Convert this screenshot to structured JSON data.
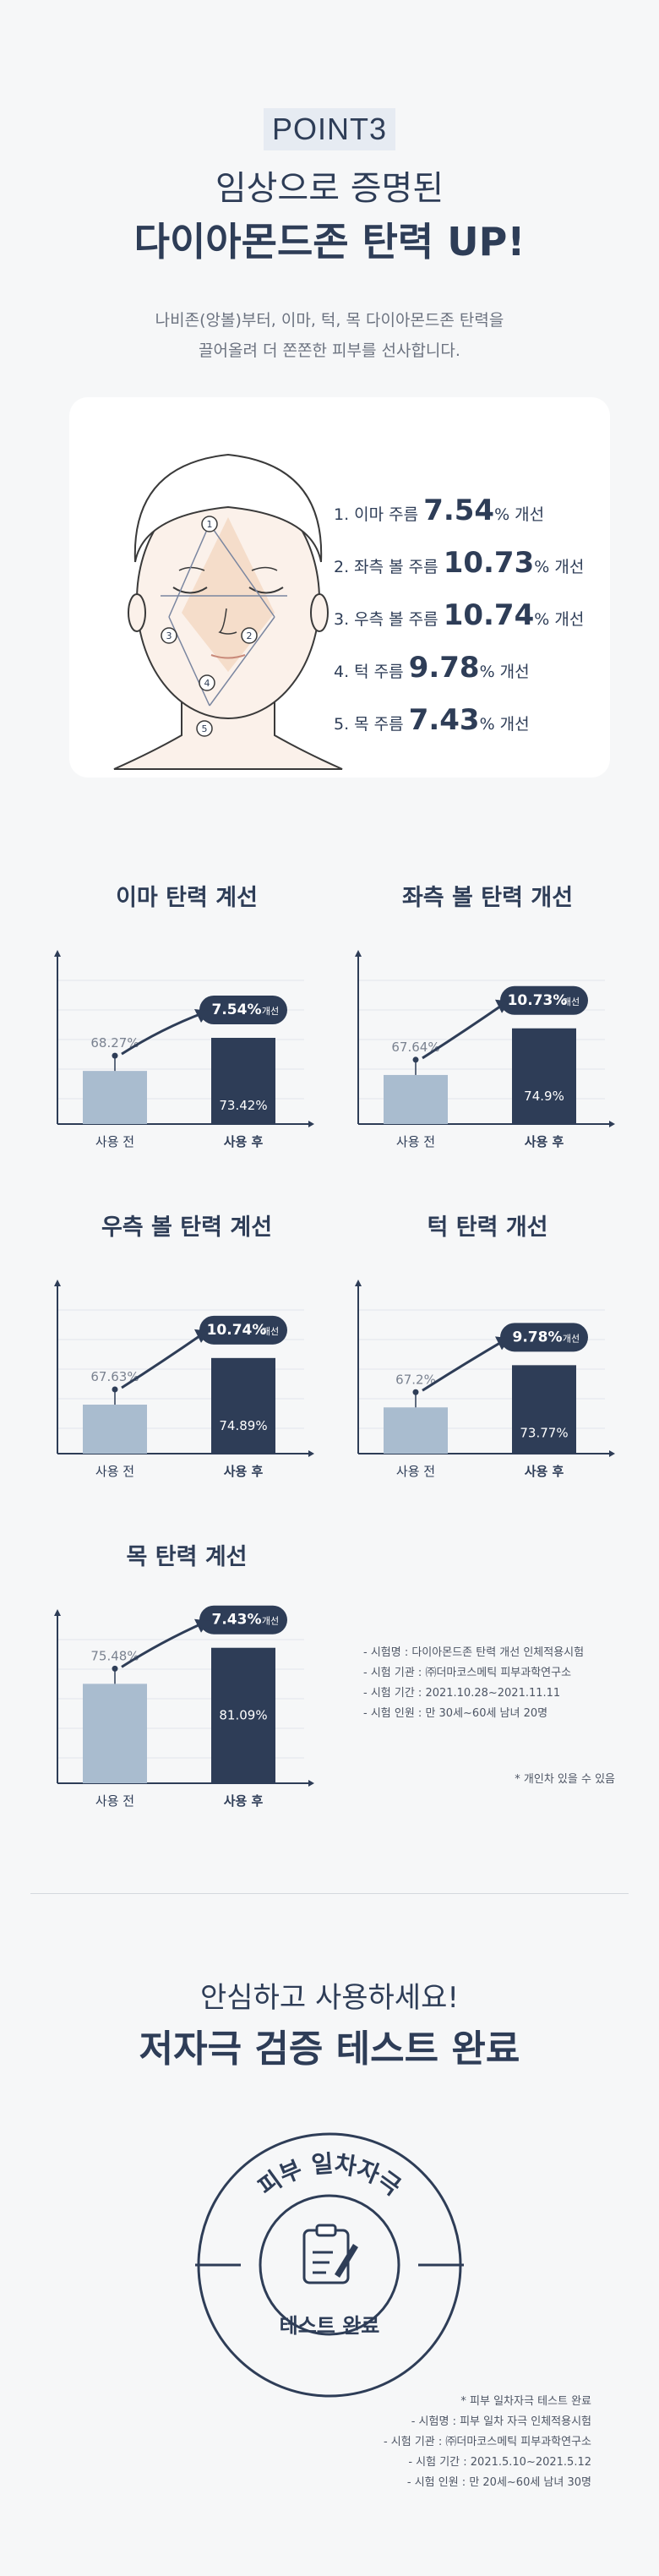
{
  "header": {
    "badge": "POINT3",
    "title_line1": "임상으로 증명된",
    "title_line2": "다이아몬드존 탄력 UP!",
    "desc_line1": "나비존(앙볼)부터, 이마, 턱, 목 다이아몬드존 탄력을",
    "desc_line2": "끌어올려 더 쫀쫀한 피부를 선사합니다."
  },
  "face": {
    "markers": [
      "1",
      "2",
      "3",
      "4",
      "5"
    ]
  },
  "stats": [
    {
      "label": "1. 이마 주름",
      "value": "7.54",
      "unit": "% 개선"
    },
    {
      "label": "2. 좌측 볼 주름",
      "value": "10.73",
      "unit": "% 개선"
    },
    {
      "label": "3. 우측 볼 주름",
      "value": "10.74",
      "unit": "% 개선"
    },
    {
      "label": "4. 턱 주름",
      "value": "9.78",
      "unit": "% 개선"
    },
    {
      "label": "5. 목 주름",
      "value": "7.43",
      "unit": "% 개선"
    }
  ],
  "chart_data": [
    {
      "type": "bar",
      "title": "이마 탄력 계선",
      "categories": [
        "사용 전",
        "사용 후"
      ],
      "values": [
        68.27,
        73.42
      ],
      "value_labels": [
        "68.27%",
        "73.42%"
      ],
      "badge": "7.54%",
      "badge_suffix": "개선"
    },
    {
      "type": "bar",
      "title": "좌측 볼 탄력 개선",
      "categories": [
        "사용 전",
        "사용 후"
      ],
      "values": [
        67.64,
        74.9
      ],
      "value_labels": [
        "67.64%",
        "74.9%"
      ],
      "badge": "10.73%",
      "badge_suffix": "개선"
    },
    {
      "type": "bar",
      "title": "우측 볼 탄력 계선",
      "categories": [
        "사용 전",
        "사용 후"
      ],
      "values": [
        67.63,
        74.89
      ],
      "value_labels": [
        "67.63%",
        "74.89%"
      ],
      "badge": "10.74%",
      "badge_suffix": "개선"
    },
    {
      "type": "bar",
      "title": "턱 탄력 개선",
      "categories": [
        "사용 전",
        "사용 후"
      ],
      "values": [
        67.2,
        73.77
      ],
      "value_labels": [
        "67.2%",
        "73.77%"
      ],
      "badge": "9.78%",
      "badge_suffix": "개선"
    },
    {
      "type": "bar",
      "title": "목 탄력 계선",
      "categories": [
        "사용 전",
        "사용 후"
      ],
      "values": [
        75.48,
        81.09
      ],
      "value_labels": [
        "75.48%",
        "81.09%"
      ],
      "badge": "7.43%",
      "badge_suffix": "개선"
    }
  ],
  "trial_notes": [
    "- 시험명 : 다이아몬드존 탄력 개선 인체적용시험",
    "- 시험 기관 : ㈜더마코스메틱 피부과학연구소",
    "- 시험 기간 : 2021.10.28~2021.11.11",
    "- 시험 인원 : 만 30세~60세 남녀 20명"
  ],
  "individual_note": "* 개인차 있을 수 있음",
  "safety": {
    "title_line1": "안심하고 사용하세요!",
    "title_line2": "저자극 검증 테스트 완료",
    "seal_top": "피부 일차자극",
    "seal_bottom": "테스트 완료",
    "notes": [
      "* 피부 일차자극 테스트 완료",
      "- 시험명 : 피부 일차 자극 인체적용시험",
      "- 시험 기관 : ㈜더마코스메틱 피부과학연구소",
      "- 시험 기간 : 2021.5.10~2021.5.12",
      "- 시험 인원 : 만 20세~60세 남녀 30명"
    ]
  },
  "colors": {
    "navy": "#2e3d57",
    "before_bar": "#a9bccf",
    "background": "#f6f7f8"
  }
}
